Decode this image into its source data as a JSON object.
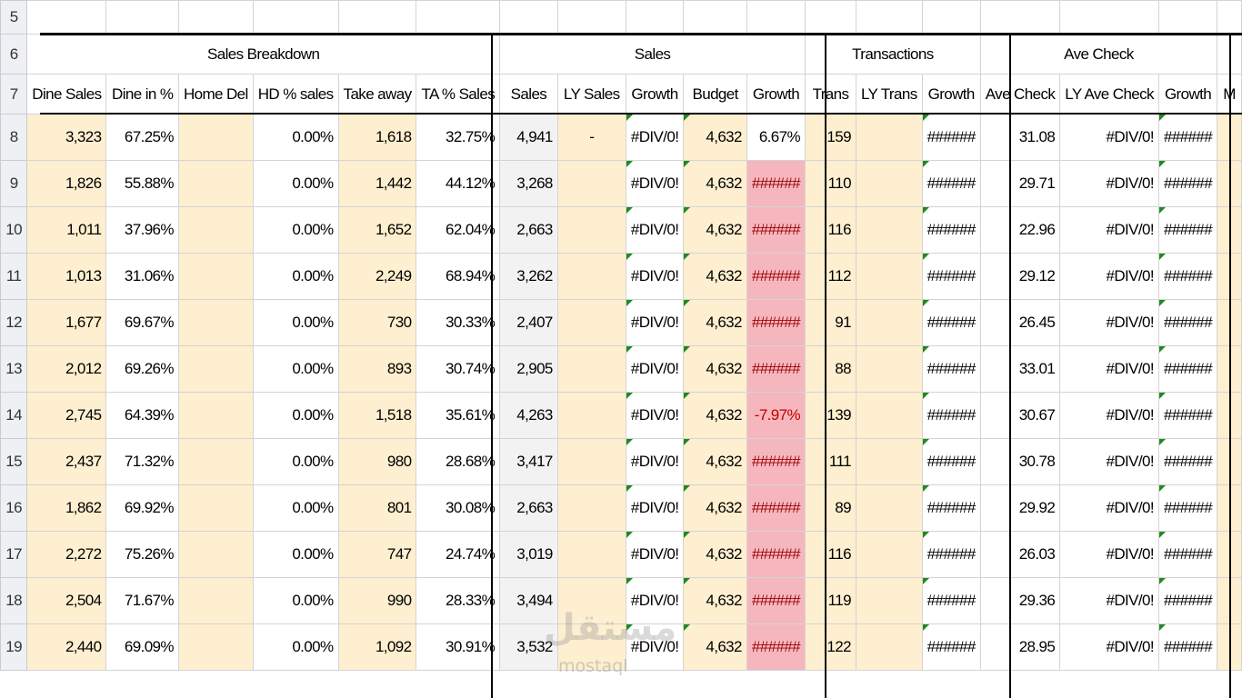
{
  "groups": {
    "sales_breakdown": "Sales Breakdown",
    "sales": "Sales",
    "transactions": "Transactions",
    "ave_check": "Ave Check"
  },
  "columns": [
    "Dine Sales",
    "Dine in %",
    "Home Del",
    "HD % sales",
    "Take away",
    "TA % Sales",
    "Sales",
    "LY Sales",
    "Growth",
    "Budget",
    "Growth",
    "Trans",
    "LY Trans",
    "Growth",
    "Ave Check",
    "LY Ave Check",
    "Growth",
    "M"
  ],
  "empty_row": {
    "num": "5"
  },
  "header_rows": {
    "group_row_num": "6",
    "column_row_num": "7"
  },
  "rows": [
    {
      "num": "8",
      "dine_sales": "3,323",
      "dine_pct": "67.25%",
      "home_del": "",
      "hd_pct": "0.00%",
      "take_away": "1,618",
      "ta_pct": "32.75%",
      "sales": "4,941",
      "ly_sales": "-",
      "growth": "#DIV/0!",
      "budget": "4,632",
      "budget_growth": "6.67%",
      "trans": "159",
      "ly_trans": "",
      "trans_growth": "######",
      "ave_check": "31.08",
      "ly_ave_check": "#DIV/0!",
      "check_growth": "######"
    },
    {
      "num": "9",
      "dine_sales": "1,826",
      "dine_pct": "55.88%",
      "home_del": "",
      "hd_pct": "0.00%",
      "take_away": "1,442",
      "ta_pct": "44.12%",
      "sales": "3,268",
      "ly_sales": "",
      "growth": "#DIV/0!",
      "budget": "4,632",
      "budget_growth": "######",
      "trans": "110",
      "ly_trans": "",
      "trans_growth": "######",
      "ave_check": "29.71",
      "ly_ave_check": "#DIV/0!",
      "check_growth": "######"
    },
    {
      "num": "10",
      "dine_sales": "1,011",
      "dine_pct": "37.96%",
      "home_del": "",
      "hd_pct": "0.00%",
      "take_away": "1,652",
      "ta_pct": "62.04%",
      "sales": "2,663",
      "ly_sales": "",
      "growth": "#DIV/0!",
      "budget": "4,632",
      "budget_growth": "######",
      "trans": "116",
      "ly_trans": "",
      "trans_growth": "######",
      "ave_check": "22.96",
      "ly_ave_check": "#DIV/0!",
      "check_growth": "######"
    },
    {
      "num": "11",
      "dine_sales": "1,013",
      "dine_pct": "31.06%",
      "home_del": "",
      "hd_pct": "0.00%",
      "take_away": "2,249",
      "ta_pct": "68.94%",
      "sales": "3,262",
      "ly_sales": "",
      "growth": "#DIV/0!",
      "budget": "4,632",
      "budget_growth": "######",
      "trans": "112",
      "ly_trans": "",
      "trans_growth": "######",
      "ave_check": "29.12",
      "ly_ave_check": "#DIV/0!",
      "check_growth": "######"
    },
    {
      "num": "12",
      "dine_sales": "1,677",
      "dine_pct": "69.67%",
      "home_del": "",
      "hd_pct": "0.00%",
      "take_away": "730",
      "ta_pct": "30.33%",
      "sales": "2,407",
      "ly_sales": "",
      "growth": "#DIV/0!",
      "budget": "4,632",
      "budget_growth": "######",
      "trans": "91",
      "ly_trans": "",
      "trans_growth": "######",
      "ave_check": "26.45",
      "ly_ave_check": "#DIV/0!",
      "check_growth": "######"
    },
    {
      "num": "13",
      "dine_sales": "2,012",
      "dine_pct": "69.26%",
      "home_del": "",
      "hd_pct": "0.00%",
      "take_away": "893",
      "ta_pct": "30.74%",
      "sales": "2,905",
      "ly_sales": "",
      "growth": "#DIV/0!",
      "budget": "4,632",
      "budget_growth": "######",
      "trans": "88",
      "ly_trans": "",
      "trans_growth": "######",
      "ave_check": "33.01",
      "ly_ave_check": "#DIV/0!",
      "check_growth": "######"
    },
    {
      "num": "14",
      "dine_sales": "2,745",
      "dine_pct": "64.39%",
      "home_del": "",
      "hd_pct": "0.00%",
      "take_away": "1,518",
      "ta_pct": "35.61%",
      "sales": "4,263",
      "ly_sales": "",
      "growth": "#DIV/0!",
      "budget": "4,632",
      "budget_growth": "-7.97%",
      "trans": "139",
      "ly_trans": "",
      "trans_growth": "######",
      "ave_check": "30.67",
      "ly_ave_check": "#DIV/0!",
      "check_growth": "######"
    },
    {
      "num": "15",
      "dine_sales": "2,437",
      "dine_pct": "71.32%",
      "home_del": "",
      "hd_pct": "0.00%",
      "take_away": "980",
      "ta_pct": "28.68%",
      "sales": "3,417",
      "ly_sales": "",
      "growth": "#DIV/0!",
      "budget": "4,632",
      "budget_growth": "######",
      "trans": "111",
      "ly_trans": "",
      "trans_growth": "######",
      "ave_check": "30.78",
      "ly_ave_check": "#DIV/0!",
      "check_growth": "######"
    },
    {
      "num": "16",
      "dine_sales": "1,862",
      "dine_pct": "69.92%",
      "home_del": "",
      "hd_pct": "0.00%",
      "take_away": "801",
      "ta_pct": "30.08%",
      "sales": "2,663",
      "ly_sales": "",
      "growth": "#DIV/0!",
      "budget": "4,632",
      "budget_growth": "######",
      "trans": "89",
      "ly_trans": "",
      "trans_growth": "######",
      "ave_check": "29.92",
      "ly_ave_check": "#DIV/0!",
      "check_growth": "######"
    },
    {
      "num": "17",
      "dine_sales": "2,272",
      "dine_pct": "75.26%",
      "home_del": "",
      "hd_pct": "0.00%",
      "take_away": "747",
      "ta_pct": "24.74%",
      "sales": "3,019",
      "ly_sales": "",
      "growth": "#DIV/0!",
      "budget": "4,632",
      "budget_growth": "######",
      "trans": "116",
      "ly_trans": "",
      "trans_growth": "######",
      "ave_check": "26.03",
      "ly_ave_check": "#DIV/0!",
      "check_growth": "######"
    },
    {
      "num": "18",
      "dine_sales": "2,504",
      "dine_pct": "71.67%",
      "home_del": "",
      "hd_pct": "0.00%",
      "take_away": "990",
      "ta_pct": "28.33%",
      "sales": "3,494",
      "ly_sales": "",
      "growth": "#DIV/0!",
      "budget": "4,632",
      "budget_growth": "######",
      "trans": "119",
      "ly_trans": "",
      "trans_growth": "######",
      "ave_check": "29.36",
      "ly_ave_check": "#DIV/0!",
      "check_growth": "######"
    },
    {
      "num": "19",
      "dine_sales": "2,440",
      "dine_pct": "69.09%",
      "home_del": "",
      "hd_pct": "0.00%",
      "take_away": "1,092",
      "ta_pct": "30.91%",
      "sales": "3,532",
      "ly_sales": "",
      "growth": "#DIV/0!",
      "budget": "4,632",
      "budget_growth": "######",
      "trans": "122",
      "ly_trans": "",
      "trans_growth": "######",
      "ave_check": "28.95",
      "ly_ave_check": "#DIV/0!",
      "check_growth": "######"
    }
  ],
  "watermark": {
    "arabic": "مستقل",
    "latin": "mostaql"
  },
  "colors": {
    "input_fill": "#fdefcf",
    "computed_fill": "#f2f2f2",
    "bad_fill": "#f6b6bd",
    "bad_text": "#9c0006",
    "error_triangle": "#1f8a1f"
  }
}
